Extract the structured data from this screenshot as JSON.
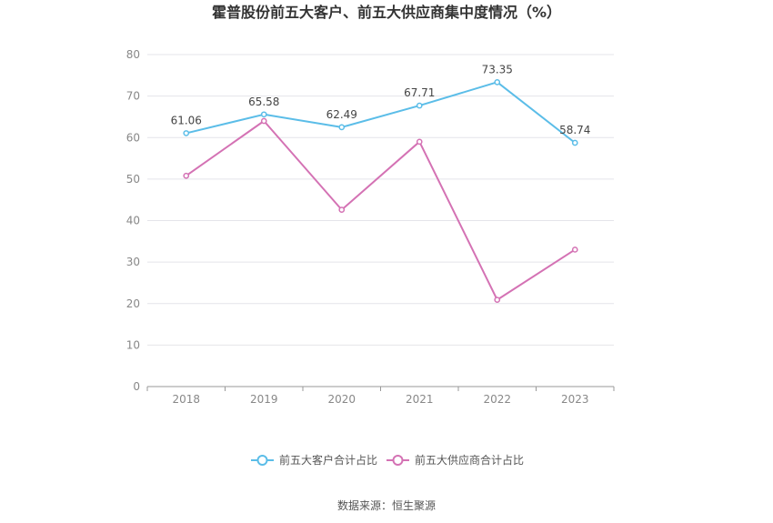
{
  "source": "数据来源：恒生聚源",
  "chart_data": {
    "type": "line",
    "title": "霍普股份前五大客户、前五大供应商集中度情况（%）",
    "categories": [
      "2018",
      "2019",
      "2020",
      "2021",
      "2022",
      "2023"
    ],
    "ylim": [
      0,
      80
    ],
    "yticks": [
      0,
      10,
      20,
      30,
      40,
      50,
      60,
      70,
      80
    ],
    "grid": true,
    "legend_position": "bottom",
    "series": [
      {
        "name": "前五大客户合计占比",
        "color": "#5bbde8",
        "values": [
          61.06,
          65.58,
          62.49,
          67.71,
          73.35,
          58.74
        ],
        "labels": [
          "61.06",
          "65.58",
          "62.49",
          "67.71",
          "73.35",
          "58.74"
        ]
      },
      {
        "name": "前五大供应商合计占比",
        "color": "#d472b4",
        "values": [
          50.8,
          64.0,
          42.6,
          59.0,
          20.9,
          33.0
        ]
      }
    ]
  }
}
